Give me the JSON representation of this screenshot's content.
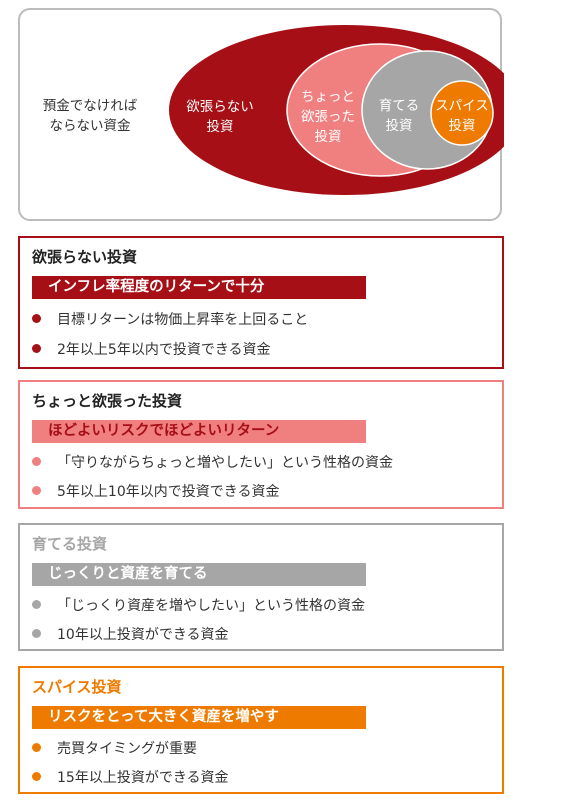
{
  "venn": {
    "outer_label": "預金でなければ\nならない資金",
    "red_label": "欲張らない\n投資",
    "pink_label": "ちょっと\n欲張った\n投資",
    "gray_label": "育てる\n投資",
    "orange_label": "スパイス\n投資"
  },
  "colors": {
    "dark_red": "#a50f15",
    "pink": "#f08080",
    "gray": "#a6a6a6",
    "orange": "#ee7b00"
  },
  "cards": [
    {
      "title": "欲張らない投資",
      "banner": "インフレ率程度のリターンで十分",
      "items": [
        "目標リターンは物価上昇率を上回ること",
        "2年以上5年以内で投資できる資金"
      ]
    },
    {
      "title": "ちょっと欲張った投資",
      "banner": "ほどよいリスクでほどよいリターン",
      "items": [
        "「守りながらちょっと増やしたい」という性格の資金",
        "5年以上10年以内で投資できる資金"
      ]
    },
    {
      "title": "育てる投資",
      "banner": "じっくりと資産を育てる",
      "items": [
        "「じっくり資産を増やしたい」という性格の資金",
        "10年以上投資ができる資金"
      ]
    },
    {
      "title": "スパイス投資",
      "banner": "リスクをとって大きく資産を増やす",
      "items": [
        "売買タイミングが重要",
        "15年以上投資ができる資金"
      ]
    }
  ]
}
